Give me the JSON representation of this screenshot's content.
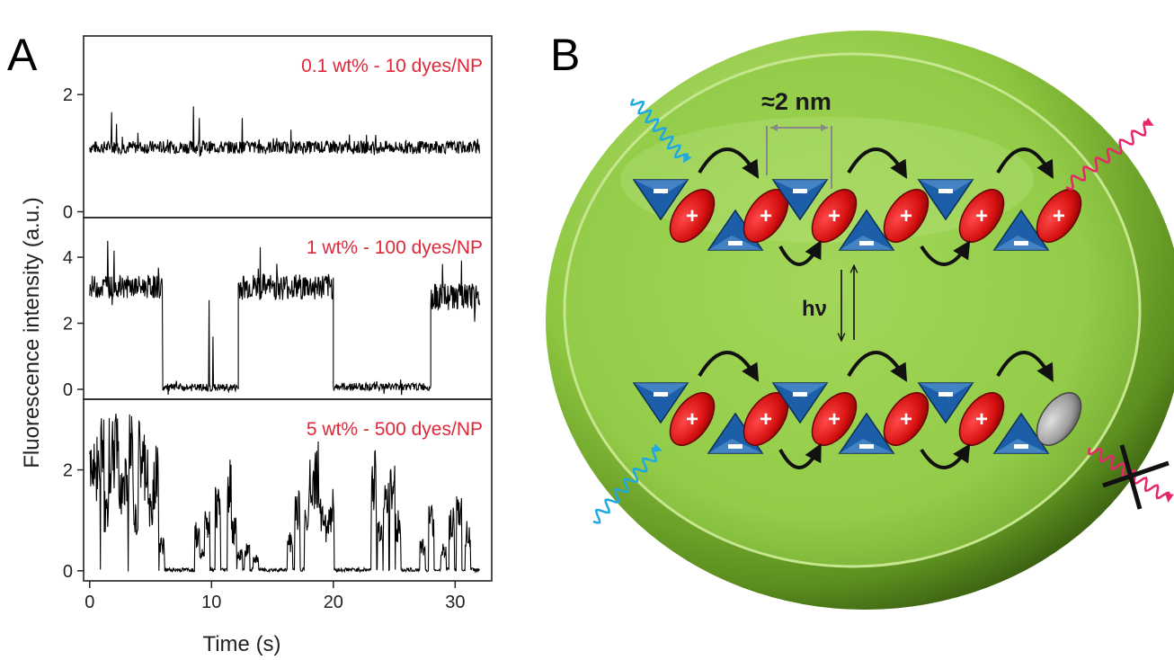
{
  "panel_a_letter": "A",
  "panel_b_letter": "B",
  "chart_data": [
    {
      "type": "line",
      "title": "0.1 wt% - 10 dyes/NP",
      "xlabel": "Time (s)",
      "ylabel": "Fluorescence intensity (a.u.)",
      "xlim": [
        -0.5,
        33
      ],
      "ylim": [
        -0.1,
        3.0
      ],
      "xticks": [
        0,
        10,
        20,
        30
      ],
      "yticks": [
        0,
        2
      ],
      "series": [
        {
          "segments": [
            {
              "x": [
                0,
                32
              ],
              "y": [
                1.1,
                1.1
              ],
              "noise": 0.11
            }
          ],
          "bumps": [
            {
              "x": [
                1.8,
                2.2,
                8.5,
                9.0,
                12.5
              ],
              "y": [
                1.7,
                1.5,
                1.8,
                1.6,
                1.6
              ]
            }
          ]
        }
      ]
    },
    {
      "type": "line",
      "title": "1 wt% - 100 dyes/NP",
      "xlabel": "Time (s)",
      "ylabel": "Fluorescence intensity (a.u.)",
      "xlim": [
        -0.5,
        33
      ],
      "ylim": [
        -0.3,
        5.2
      ],
      "xticks": [
        0,
        10,
        20,
        30
      ],
      "yticks": [
        0,
        2,
        4
      ],
      "series": [
        {
          "segments": [
            {
              "x": [
                0,
                6.0
              ],
              "y": [
                3.1,
                3.1
              ],
              "noise": 0.35
            },
            {
              "x": [
                6.0,
                12.2
              ],
              "y": [
                0.05,
                0.05
              ],
              "noise": 0.12
            },
            {
              "x": [
                12.2,
                20.0
              ],
              "y": [
                3.1,
                3.1
              ],
              "noise": 0.4
            },
            {
              "x": [
                20.0,
                28.0
              ],
              "y": [
                0.08,
                0.08
              ],
              "noise": 0.12
            },
            {
              "x": [
                28.0,
                32
              ],
              "y": [
                2.8,
                2.8
              ],
              "noise": 0.4
            }
          ],
          "bumps": [
            {
              "x": [
                9.8,
                10.1,
                1.5,
                2.0,
                14.0,
                30.5
              ],
              "y": [
                2.7,
                1.6,
                4.5,
                4.2,
                4.3,
                3.9
              ]
            }
          ]
        }
      ]
    },
    {
      "type": "line",
      "title": "5 wt% - 500 dyes/NP",
      "xlabel": "Time (s)",
      "ylabel": "Fluorescence intensity (a.u.)",
      "xlim": [
        -0.5,
        33
      ],
      "ylim": [
        -0.2,
        3.4
      ],
      "xticks": [
        0,
        10,
        20,
        30
      ],
      "yticks": [
        0,
        2
      ],
      "series": [
        {
          "blinks": {
            "x": [
              0.0,
              0.4,
              0.9,
              1.2,
              1.6,
              2.0,
              2.4,
              2.7,
              3.2,
              3.6,
              4.0,
              4.4,
              4.8,
              5.2,
              5.7,
              8.6,
              9.0,
              9.4,
              10.3,
              11.3,
              11.6,
              12.1,
              12.7,
              13.4,
              16.2,
              16.8,
              17.6,
              18.0,
              18.4,
              18.8,
              19.2,
              19.6,
              23.1,
              23.6,
              24.1,
              24.6,
              25.1,
              27.1,
              27.8,
              28.8,
              29.5,
              30.1,
              30.8
            ],
            "y": [
              2.8,
              2.6,
              2.9,
              1.5,
              2.8,
              2.9,
              2.2,
              2.5,
              2.9,
              1.2,
              2.7,
              2.6,
              1.4,
              2.4,
              0.6,
              0.9,
              0.5,
              1.1,
              1.6,
              2.2,
              1.0,
              0.4,
              0.5,
              0.3,
              0.7,
              1.6,
              1.4,
              2.2,
              2.4,
              1.3,
              1.1,
              1.5,
              2.2,
              1.0,
              1.6,
              2.0,
              1.1,
              0.6,
              1.2,
              0.5,
              1.2,
              1.4,
              0.9
            ]
          }
        }
      ]
    }
  ],
  "schematic": {
    "distance_label": "≈2 nm",
    "light_label": "hν",
    "cation_symbol": "+",
    "anion_symbol": "−",
    "colors": {
      "nanoparticle": "#8dc63f",
      "cation": "#e01818",
      "anion": "#1c5fa8",
      "excitation": "#1fa9e1",
      "emission": "#e8276b",
      "quencher": "#9a9a9a"
    }
  }
}
